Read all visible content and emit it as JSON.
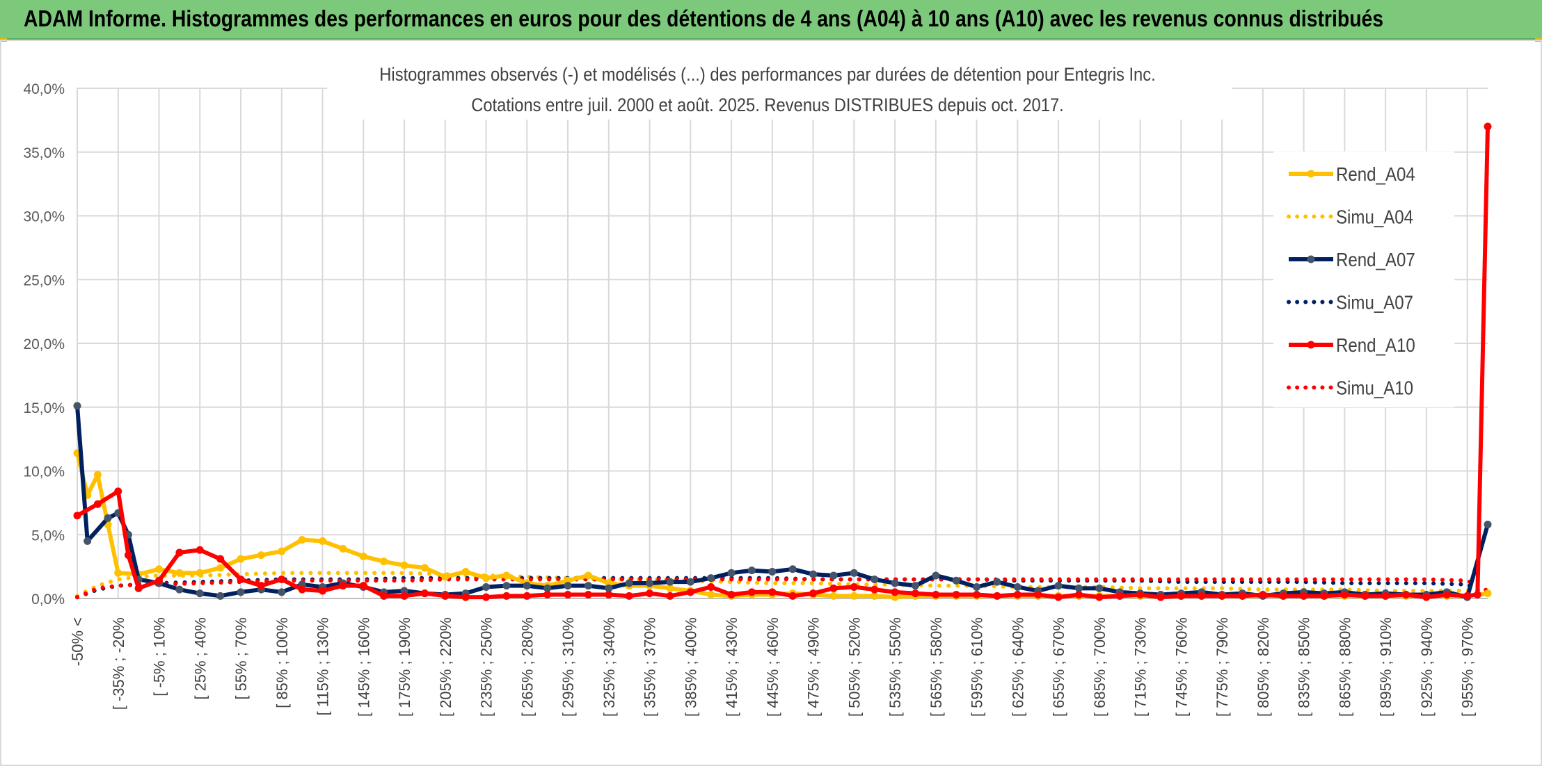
{
  "banner": {
    "title": "ADAM Informe. Histogrammes des performances en euros pour des détentions de 4 ans (A04) à 10 ans (A10) avec les revenus connus distribués"
  },
  "chart_data": {
    "type": "line",
    "title": "Histogrammes observés (-) et modélisés (...) des performances par durées de détention pour Entegris Inc.",
    "subtitle": "Cotations entre juil. 2000 et août. 2025. Revenus DISTRIBUES depuis oct. 2017.",
    "xlabel": "",
    "ylabel": "",
    "ylim": [
      0,
      40
    ],
    "yticks": [
      "0,0%",
      "5,0%",
      "10,0%",
      "15,0%",
      "20,0%",
      "25,0%",
      "30,0%",
      "35,0%",
      "40,0%"
    ],
    "grid": true,
    "legend_position": "top-right",
    "categories": [
      "-50% <",
      "[ -50% ; -45%",
      "[ -45% ; -40%",
      "[ -40% ; -35%",
      "[ -35% ; -20%",
      "[ -20% ; -15%",
      "[ -15% ; -10%",
      "[ -10% ; -5%",
      "[ -5% ; 10%",
      "[ 10% ; 15%",
      "[ 15% ; 20%",
      "[ 20% ; 25%",
      "[ 25% ; 40%",
      "[ 40% ; 45%",
      "[ 45% ; 50%",
      "[ 50% ; 55%",
      "[ 55% ; 70%",
      "[ 70% ; 75%",
      "[ 75% ; 80%",
      "[ 80% ; 85%",
      "[ 85% ; 100%",
      "[ 100% ; 105%",
      "[ 105% ; 110%",
      "[ 110% ; 115%",
      "[ 115% ; 130%",
      "[ 130% ; 135%",
      "[ 135% ; 140%",
      "[ 140% ; 145%",
      "[ 145% ; 160%",
      "[ 160% ; 165%",
      "[ 165% ; 170%",
      "[ 170% ; 175%",
      "[ 175% ; 190%",
      "[ 190% ; 195%",
      "[ 195% ; 200%",
      "[ 200% ; 205%",
      "[ 205% ; 220%",
      "[ 220% ; 225%",
      "[ 225% ; 230%",
      "[ 230% ; 235%",
      "[ 235% ; 250%",
      "[ 250% ; 255%",
      "[ 255% ; 260%",
      "[ 260% ; 265%",
      "[ 265% ; 280%",
      "[ 280% ; 285%",
      "[ 285% ; 290%",
      "[ 290% ; 295%",
      "[ 295% ; 310%",
      "[ 310% ; 315%",
      "[ 315% ; 320%",
      "[ 320% ; 325%",
      "[ 325% ; 340%",
      "[ 340% ; 345%",
      "[ 345% ; 350%",
      "[ 350% ; 355%",
      "[ 355% ; 370%",
      "[ 370% ; 375%",
      "[ 375% ; 380%",
      "[ 380% ; 385%",
      "[ 385% ; 400%",
      "[ 400% ; 405%",
      "[ 405% ; 410%",
      "[ 410% ; 415%",
      "[ 415% ; 430%",
      "[ 430% ; 435%",
      "[ 435% ; 440%",
      "[ 440% ; 445%",
      "[ 445% ; 460%",
      "[ 460% ; 465%",
      "[ 465% ; 470%",
      "[ 470% ; 475%",
      "[ 475% ; 490%",
      "[ 490% ; 495%",
      "[ 495% ; 500%",
      "[ 500% ; 505%",
      "[ 505% ; 520%",
      "[ 520% ; 525%",
      "[ 525% ; 530%",
      "[ 530% ; 535%",
      "[ 535% ; 550%",
      "[ 550% ; 555%",
      "[ 555% ; 560%",
      "[ 560% ; 565%",
      "[ 565% ; 580%",
      "[ 580% ; 585%",
      "[ 585% ; 590%",
      "[ 590% ; 595%",
      "[ 595% ; 610%",
      "[ 610% ; 615%",
      "[ 615% ; 620%",
      "[ 620% ; 625%",
      "[ 625% ; 640%",
      "[ 640% ; 645%",
      "[ 645% ; 650%",
      "[ 650% ; 655%",
      "[ 655% ; 670%",
      "[ 670% ; 675%",
      "[ 675% ; 680%",
      "[ 680% ; 685%",
      "[ 685% ; 700%",
      "[ 700% ; 705%",
      "[ 705% ; 710%",
      "[ 710% ; 715%",
      "[ 715% ; 730%",
      "[ 730% ; 735%",
      "[ 735% ; 740%",
      "[ 740% ; 745%",
      "[ 745% ; 760%",
      "[ 760% ; 765%",
      "[ 765% ; 770%",
      "[ 770% ; 775%",
      "[ 775% ; 790%",
      "[ 790% ; 795%",
      "[ 795% ; 800%",
      "[ 800% ; 805%",
      "[ 805% ; 820%",
      "[ 820% ; 825%",
      "[ 825% ; 830%",
      "[ 830% ; 835%",
      "[ 835% ; 850%",
      "[ 850% ; 855%",
      "[ 855% ; 860%",
      "[ 860% ; 865%",
      "[ 865% ; 880%",
      "[ 880% ; 885%",
      "[ 885% ; 890%",
      "[ 890% ; 895%",
      "[ 895% ; 910%",
      "[ 910% ; 915%",
      "[ 915% ; 920%",
      "[ 920% ; 925%",
      "[ 925% ; 940%",
      "[ 940% ; 945%",
      "[ 945% ; 950%",
      "[ 950% ; 955%",
      "[ 955% ; 970%",
      "[ 970% ; 975%",
      "> 975%"
    ],
    "visible_tick_labels": [
      "-50% <",
      "[ -35% ; -20%",
      "[ -5% ; 10%",
      "[ 25% ; 40%",
      "[ 55% ; 70%",
      "[ 85% ; 100%",
      "[ 115% ; 130%",
      "[ 145% ; 160%",
      "[ 175% ; 190%",
      "[ 205% ; 220%",
      "[ 235% ; 250%",
      "[ 265% ; 280%",
      "[ 295% ; 310%",
      "[ 325% ; 340%",
      "[ 355% ; 370%",
      "[ 385% ; 400%",
      "[ 415% ; 430%",
      "[ 445% ; 460%",
      "[ 475% ; 490%",
      "[ 505% ; 520%",
      "[ 535% ; 550%",
      "[ 565% ; 580%",
      "[ 595% ; 610%",
      "[ 625% ; 640%",
      "[ 655% ; 670%",
      "[ 685% ; 700%",
      "[ 715% ; 730%",
      "[ 745% ; 760%",
      "[ 775% ; 790%",
      "[ 805% ; 820%",
      "[ 835% ; 850%",
      "[ 865% ; 880%",
      "[ 895% ; 910%",
      "[ 925% ; 940%",
      "[ 955% ; 970%"
    ],
    "series": [
      {
        "name": "Rend_A04",
        "color": "#ffc000",
        "style": "solid",
        "x": [
          "-50% <",
          "[ -50% ; -45%",
          "[ -45% ; -40%",
          "[ -40% ; -35%",
          "[ -35% ; -20%",
          "[ -15% ; -10%",
          "[ -5% ; 10%",
          "[ 15% ; 20%",
          "[ 25% ; 40%",
          "[ 45% ; 50%",
          "[ 55% ; 70%",
          "[ 75% ; 80%",
          "[ 85% ; 100%",
          "[ 105% ; 110%",
          "[ 115% ; 130%",
          "[ 135% ; 140%",
          "[ 145% ; 160%",
          "[ 165% ; 170%",
          "[ 175% ; 190%",
          "[ 195% ; 200%",
          "[ 205% ; 220%",
          "[ 225% ; 230%",
          "[ 235% ; 250%",
          "[ 255% ; 260%",
          "[ 265% ; 280%",
          "[ 285% ; 290%",
          "[ 295% ; 310%",
          "[ 315% ; 320%",
          "[ 325% ; 340%",
          "[ 345% ; 350%",
          "[ 355% ; 370%",
          "[ 375% ; 380%",
          "[ 385% ; 400%",
          "[ 405% ; 410%",
          "[ 415% ; 430%",
          "[ 435% ; 440%",
          "[ 445% ; 460%",
          "[ 465% ; 470%",
          "[ 475% ; 490%",
          "[ 495% ; 500%",
          "[ 505% ; 520%",
          "[ 525% ; 530%",
          "[ 535% ; 550%",
          "[ 555% ; 560%",
          "[ 565% ; 580%",
          "[ 585% ; 590%",
          "[ 595% ; 610%",
          "[ 615% ; 620%",
          "[ 625% ; 640%",
          "[ 645% ; 650%",
          "[ 655% ; 670%",
          "[ 675% ; 680%",
          "[ 685% ; 700%",
          "[ 705% ; 710%",
          "[ 715% ; 730%",
          "[ 735% ; 740%",
          "[ 745% ; 760%",
          "[ 765% ; 770%",
          "[ 775% ; 790%",
          "[ 795% ; 800%",
          "[ 805% ; 820%",
          "[ 825% ; 830%",
          "[ 835% ; 850%",
          "[ 855% ; 860%",
          "[ 865% ; 880%",
          "[ 885% ; 890%",
          "[ 895% ; 910%",
          "[ 915% ; 920%",
          "[ 925% ; 940%",
          "[ 945% ; 950%",
          "[ 955% ; 970%",
          "> 975%"
        ],
        "values": [
          11.4,
          8.1,
          9.7,
          5.8,
          2.0,
          1.9,
          2.3,
          2.0,
          2.0,
          2.4,
          3.1,
          3.4,
          3.7,
          4.6,
          4.5,
          3.9,
          3.3,
          2.9,
          2.6,
          2.4,
          1.7,
          2.1,
          1.6,
          1.8,
          1.2,
          1.0,
          1.4,
          1.8,
          1.2,
          1.0,
          1.0,
          0.8,
          0.6,
          0.3,
          0.2,
          0.3,
          0.3,
          0.4,
          0.3,
          0.2,
          0.2,
          0.2,
          0.1,
          0.2,
          0.2,
          0.2,
          0.2,
          0.2,
          0.2,
          0.2,
          0.2,
          0.2,
          0.2,
          0.2,
          0.2,
          0.2,
          0.2,
          0.2,
          0.2,
          0.2,
          0.2,
          0.2,
          0.2,
          0.2,
          0.2,
          0.2,
          0.2,
          0.2,
          0.2,
          0.2,
          0.2,
          0.4
        ]
      },
      {
        "name": "Simu_A04",
        "color": "#ffc000",
        "style": "dotted",
        "x": [
          "-50% <",
          "[ -45% ; -40%",
          "[ -35% ; -20%",
          "[ -20% ; -15%",
          "[ -15% ; -10%",
          "[ -5% ; 10%",
          "[ 25% ; 40%",
          "[ 55% ; 70%",
          "[ 85% ; 100%",
          "[ 115% ; 130%",
          "[ 145% ; 160%",
          "[ 175% ; 190%",
          "[ 205% ; 220%",
          "[ 235% ; 250%",
          "[ 265% ; 280%",
          "[ 295% ; 310%",
          "[ 325% ; 340%",
          "[ 355% ; 370%",
          "[ 385% ; 400%",
          "[ 415% ; 430%",
          "[ 445% ; 460%",
          "[ 475% ; 490%",
          "[ 505% ; 520%",
          "[ 535% ; 550%",
          "[ 565% ; 580%",
          "[ 595% ; 610%",
          "[ 625% ; 640%",
          "[ 655% ; 670%",
          "[ 685% ; 700%",
          "[ 715% ; 730%",
          "[ 745% ; 760%",
          "[ 775% ; 790%",
          "[ 805% ; 820%",
          "[ 835% ; 850%",
          "[ 865% ; 880%",
          "[ 895% ; 910%",
          "[ 925% ; 940%",
          "[ 955% ; 970%",
          "> 975%"
        ],
        "values": [
          0.2,
          1.0,
          1.5,
          1.6,
          1.7,
          1.8,
          1.8,
          1.9,
          2.0,
          2.0,
          2.0,
          2.0,
          1.9,
          1.8,
          1.7,
          1.6,
          1.5,
          1.5,
          1.4,
          1.3,
          1.2,
          1.2,
          1.1,
          1.1,
          1.0,
          1.0,
          0.9,
          0.9,
          0.9,
          0.8,
          0.8,
          0.8,
          0.7,
          0.7,
          0.7,
          0.6,
          0.6,
          0.6,
          0.6
        ]
      },
      {
        "name": "Rend_A07",
        "color": "#002060",
        "style": "solid",
        "x": [
          "-50% <",
          "[ -50% ; -45%",
          "[ -40% ; -35%",
          "[ -35% ; -20%",
          "[ -20% ; -15%",
          "[ -15% ; -10%",
          "[ -5% ; 10%",
          "[ 15% ; 20%",
          "[ 25% ; 40%",
          "[ 45% ; 50%",
          "[ 55% ; 70%",
          "[ 75% ; 80%",
          "[ 85% ; 100%",
          "[ 105% ; 110%",
          "[ 115% ; 130%",
          "[ 135% ; 140%",
          "[ 145% ; 160%",
          "[ 165% ; 170%",
          "[ 175% ; 190%",
          "[ 195% ; 200%",
          "[ 205% ; 220%",
          "[ 225% ; 230%",
          "[ 235% ; 250%",
          "[ 255% ; 260%",
          "[ 265% ; 280%",
          "[ 285% ; 290%",
          "[ 295% ; 310%",
          "[ 315% ; 320%",
          "[ 325% ; 340%",
          "[ 345% ; 350%",
          "[ 355% ; 370%",
          "[ 375% ; 380%",
          "[ 385% ; 400%",
          "[ 405% ; 410%",
          "[ 415% ; 430%",
          "[ 435% ; 440%",
          "[ 445% ; 460%",
          "[ 465% ; 470%",
          "[ 475% ; 490%",
          "[ 495% ; 500%",
          "[ 505% ; 520%",
          "[ 525% ; 530%",
          "[ 535% ; 550%",
          "[ 555% ; 560%",
          "[ 565% ; 580%",
          "[ 585% ; 590%",
          "[ 595% ; 610%",
          "[ 615% ; 620%",
          "[ 625% ; 640%",
          "[ 645% ; 650%",
          "[ 655% ; 670%",
          "[ 675% ; 680%",
          "[ 685% ; 700%",
          "[ 705% ; 710%",
          "[ 715% ; 730%",
          "[ 735% ; 740%",
          "[ 745% ; 760%",
          "[ 765% ; 770%",
          "[ 775% ; 790%",
          "[ 795% ; 800%",
          "[ 805% ; 820%",
          "[ 825% ; 830%",
          "[ 835% ; 850%",
          "[ 855% ; 860%",
          "[ 865% ; 880%",
          "[ 885% ; 890%",
          "[ 895% ; 910%",
          "[ 915% ; 920%",
          "[ 925% ; 940%",
          "[ 945% ; 950%",
          "[ 955% ; 970%",
          "> 975%"
        ],
        "values": [
          15.1,
          4.5,
          6.3,
          6.7,
          5.0,
          1.5,
          1.2,
          0.7,
          0.4,
          0.2,
          0.5,
          0.7,
          0.5,
          1.1,
          0.9,
          1.2,
          0.9,
          0.5,
          0.6,
          0.4,
          0.3,
          0.4,
          0.9,
          1.0,
          1.0,
          0.8,
          1.0,
          1.0,
          0.8,
          1.2,
          1.2,
          1.3,
          1.3,
          1.6,
          2.0,
          2.2,
          2.1,
          2.3,
          1.9,
          1.8,
          2.0,
          1.5,
          1.2,
          1.0,
          1.8,
          1.4,
          0.9,
          1.3,
          0.9,
          0.6,
          1.0,
          0.8,
          0.8,
          0.5,
          0.4,
          0.3,
          0.4,
          0.5,
          0.3,
          0.4,
          0.2,
          0.4,
          0.5,
          0.4,
          0.5,
          0.3,
          0.4,
          0.3,
          0.3,
          0.5,
          0.1,
          5.8
        ]
      },
      {
        "name": "Simu_A07",
        "color": "#002060",
        "style": "dotted",
        "x": [
          "-50% <",
          "[ -45% ; -40%",
          "[ -35% ; -20%",
          "[ -15% ; -10%",
          "[ -5% ; 10%",
          "[ 25% ; 40%",
          "[ 55% ; 70%",
          "[ 85% ; 100%",
          "[ 115% ; 130%",
          "[ 145% ; 160%",
          "[ 175% ; 190%",
          "[ 205% ; 220%",
          "[ 235% ; 250%",
          "[ 265% ; 280%",
          "[ 295% ; 310%",
          "[ 325% ; 340%",
          "[ 355% ; 370%",
          "[ 385% ; 400%",
          "[ 415% ; 430%",
          "[ 445% ; 460%",
          "[ 475% ; 490%",
          "[ 505% ; 520%",
          "[ 535% ; 550%",
          "[ 565% ; 580%",
          "[ 595% ; 610%",
          "[ 625% ; 640%",
          "[ 655% ; 670%",
          "[ 685% ; 700%",
          "[ 715% ; 730%",
          "[ 745% ; 760%",
          "[ 775% ; 790%",
          "[ 805% ; 820%",
          "[ 835% ; 850%",
          "[ 865% ; 880%",
          "[ 895% ; 910%",
          "[ 925% ; 940%",
          "[ 955% ; 970%",
          "> 975%"
        ],
        "values": [
          0.1,
          0.7,
          1.0,
          1.1,
          1.2,
          1.3,
          1.4,
          1.5,
          1.5,
          1.5,
          1.6,
          1.6,
          1.6,
          1.6,
          1.6,
          1.6,
          1.6,
          1.6,
          1.6,
          1.6,
          1.5,
          1.5,
          1.5,
          1.5,
          1.5,
          1.4,
          1.4,
          1.4,
          1.4,
          1.3,
          1.3,
          1.3,
          1.3,
          1.2,
          1.2,
          1.2,
          1.1,
          0.3
        ]
      },
      {
        "name": "Rend_A10",
        "color": "#ff0000",
        "style": "solid",
        "x": [
          "-50% <",
          "[ -45% ; -40%",
          "[ -35% ; -20%",
          "[ -20% ; -15%",
          "[ -15% ; -10%",
          "[ -5% ; 10%",
          "[ 15% ; 20%",
          "[ 25% ; 40%",
          "[ 45% ; 50%",
          "[ 55% ; 70%",
          "[ 75% ; 80%",
          "[ 85% ; 100%",
          "[ 105% ; 110%",
          "[ 115% ; 130%",
          "[ 135% ; 140%",
          "[ 145% ; 160%",
          "[ 165% ; 170%",
          "[ 175% ; 190%",
          "[ 195% ; 200%",
          "[ 205% ; 220%",
          "[ 225% ; 230%",
          "[ 235% ; 250%",
          "[ 255% ; 260%",
          "[ 265% ; 280%",
          "[ 285% ; 290%",
          "[ 295% ; 310%",
          "[ 315% ; 320%",
          "[ 325% ; 340%",
          "[ 345% ; 350%",
          "[ 355% ; 370%",
          "[ 375% ; 380%",
          "[ 385% ; 400%",
          "[ 405% ; 410%",
          "[ 415% ; 430%",
          "[ 435% ; 440%",
          "[ 445% ; 460%",
          "[ 465% ; 470%",
          "[ 475% ; 490%",
          "[ 495% ; 500%",
          "[ 505% ; 520%",
          "[ 525% ; 530%",
          "[ 535% ; 550%",
          "[ 555% ; 560%",
          "[ 565% ; 580%",
          "[ 585% ; 590%",
          "[ 595% ; 610%",
          "[ 615% ; 620%",
          "[ 625% ; 640%",
          "[ 645% ; 650%",
          "[ 655% ; 670%",
          "[ 675% ; 680%",
          "[ 685% ; 700%",
          "[ 705% ; 710%",
          "[ 715% ; 730%",
          "[ 735% ; 740%",
          "[ 745% ; 760%",
          "[ 765% ; 770%",
          "[ 775% ; 790%",
          "[ 795% ; 800%",
          "[ 805% ; 820%",
          "[ 825% ; 830%",
          "[ 835% ; 850%",
          "[ 855% ; 860%",
          "[ 865% ; 880%",
          "[ 885% ; 890%",
          "[ 895% ; 910%",
          "[ 915% ; 920%",
          "[ 925% ; 940%",
          "[ 945% ; 950%",
          "[ 955% ; 970%",
          "[ 970% ; 975%",
          "> 975%"
        ],
        "values": [
          6.5,
          7.4,
          8.4,
          3.4,
          0.8,
          1.4,
          3.6,
          3.8,
          3.1,
          1.5,
          1.0,
          1.5,
          0.7,
          0.6,
          1.0,
          1.0,
          0.2,
          0.2,
          0.4,
          0.2,
          0.1,
          0.1,
          0.2,
          0.2,
          0.3,
          0.3,
          0.3,
          0.3,
          0.2,
          0.4,
          0.2,
          0.5,
          0.9,
          0.3,
          0.5,
          0.5,
          0.2,
          0.4,
          0.8,
          0.9,
          0.7,
          0.5,
          0.4,
          0.3,
          0.3,
          0.3,
          0.2,
          0.3,
          0.3,
          0.1,
          0.3,
          0.1,
          0.2,
          0.3,
          0.1,
          0.2,
          0.2,
          0.2,
          0.2,
          0.3,
          0.2,
          0.2,
          0.2,
          0.3,
          0.2,
          0.2,
          0.3,
          0.1,
          0.3,
          0.2,
          0.3,
          37.0
        ]
      },
      {
        "name": "Simu_A10",
        "color": "#ff0000",
        "style": "dotted",
        "x": [
          "-50% <",
          "[ -45% ; -40%",
          "[ -35% ; -20%",
          "[ -15% ; -10%",
          "[ -5% ; 10%",
          "[ 25% ; 40%",
          "[ 55% ; 70%",
          "[ 85% ; 100%",
          "[ 115% ; 130%",
          "[ 145% ; 160%",
          "[ 175% ; 190%",
          "[ 205% ; 220%",
          "[ 235% ; 250%",
          "[ 265% ; 280%",
          "[ 295% ; 310%",
          "[ 325% ; 340%",
          "[ 355% ; 370%",
          "[ 385% ; 400%",
          "[ 415% ; 430%",
          "[ 445% ; 460%",
          "[ 475% ; 490%",
          "[ 505% ; 520%",
          "[ 535% ; 550%",
          "[ 565% ; 580%",
          "[ 595% ; 610%",
          "[ 625% ; 640%",
          "[ 655% ; 670%",
          "[ 685% ; 700%",
          "[ 715% ; 730%",
          "[ 745% ; 760%",
          "[ 775% ; 790%",
          "[ 805% ; 820%",
          "[ 835% ; 850%",
          "[ 865% ; 880%",
          "[ 895% ; 910%",
          "[ 925% ; 940%",
          "[ 955% ; 970%",
          "> 975%"
        ],
        "values": [
          0.1,
          0.8,
          1.0,
          1.1,
          1.1,
          1.2,
          1.3,
          1.4,
          1.4,
          1.4,
          1.4,
          1.5,
          1.5,
          1.5,
          1.5,
          1.5,
          1.5,
          1.5,
          1.5,
          1.5,
          1.5,
          1.5,
          1.5,
          1.5,
          1.5,
          1.5,
          1.5,
          1.5,
          1.5,
          1.5,
          1.5,
          1.5,
          1.5,
          1.5,
          1.5,
          1.5,
          1.4,
          0.6
        ]
      }
    ]
  }
}
